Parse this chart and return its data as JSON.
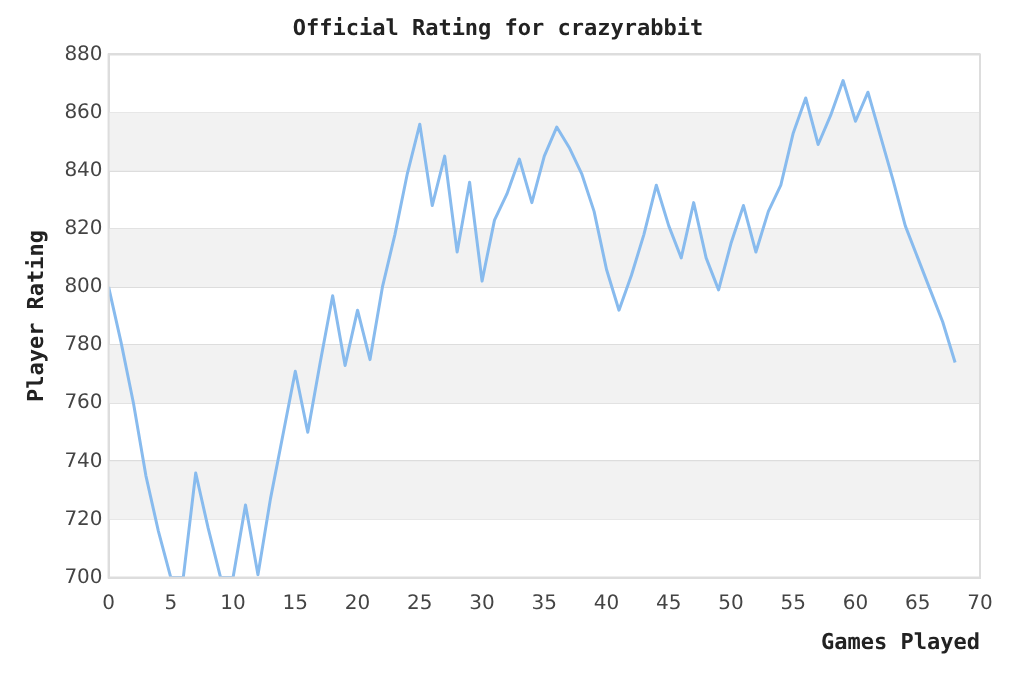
{
  "chart_data": {
    "type": "line",
    "title": "Official Rating for crazyrabbit",
    "xlabel": "Games Played",
    "ylabel": "Player Rating",
    "x": [
      0,
      1,
      2,
      3,
      4,
      5,
      6,
      7,
      8,
      9,
      10,
      11,
      12,
      13,
      14,
      15,
      16,
      17,
      18,
      19,
      20,
      21,
      22,
      23,
      24,
      25,
      26,
      27,
      28,
      29,
      30,
      31,
      32,
      33,
      34,
      35,
      36,
      37,
      38,
      39,
      40,
      41,
      42,
      43,
      44,
      45,
      46,
      47,
      48,
      49,
      50,
      51,
      52,
      53,
      54,
      55,
      56,
      57,
      58,
      59,
      60,
      61,
      62,
      63,
      64,
      65,
      66,
      67,
      68
    ],
    "series": [
      {
        "color": "#88bbee",
        "values": [
          800,
          781,
          760,
          735,
          716,
          700,
          700,
          736,
          717,
          700,
          700,
          725,
          701,
          727,
          749,
          771,
          750,
          774,
          797,
          773,
          792,
          775,
          800,
          818,
          839,
          856,
          828,
          845,
          812,
          836,
          802,
          823,
          832,
          844,
          829,
          845,
          855,
          848,
          839,
          826,
          806,
          792,
          804,
          818,
          835,
          821,
          810,
          829,
          810,
          799,
          815,
          828,
          812,
          826,
          835,
          853,
          865,
          849,
          859,
          871,
          857,
          867,
          852,
          837,
          821,
          810,
          799,
          788,
          774
        ]
      }
    ],
    "xlim": [
      0,
      70
    ],
    "xticks": [
      0,
      5,
      10,
      15,
      20,
      25,
      30,
      35,
      40,
      45,
      50,
      55,
      60,
      65,
      70
    ],
    "ylim": [
      700,
      880
    ],
    "yticks": [
      700,
      720,
      740,
      760,
      780,
      800,
      820,
      840,
      860,
      880
    ],
    "grid": "y",
    "legend": false,
    "marker": "none",
    "line_style": "solid"
  }
}
